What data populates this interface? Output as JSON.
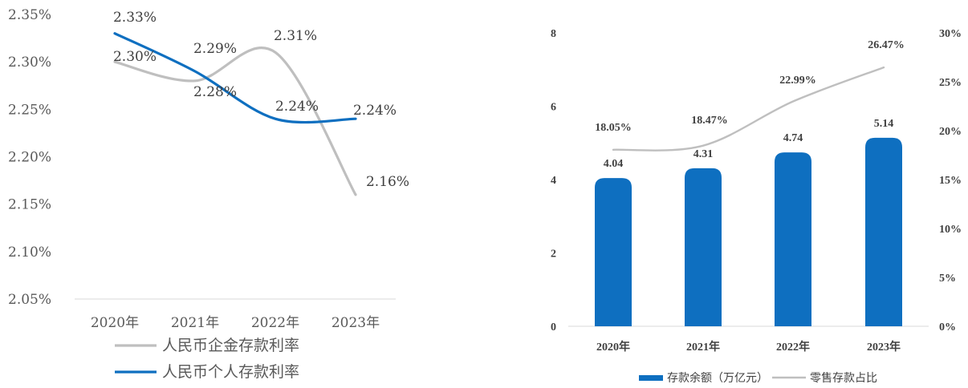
{
  "chart_data": [
    {
      "type": "line",
      "categories": [
        "2020年",
        "2021年",
        "2022年",
        "2023年"
      ],
      "ylim": [
        2.05,
        2.35
      ],
      "y_ticks": [
        "2.05%",
        "2.10%",
        "2.15%",
        "2.20%",
        "2.25%",
        "2.30%",
        "2.35%"
      ],
      "grid": false,
      "legend_position": "bottom",
      "series": [
        {
          "name": "人民币企金存款利率",
          "values": [
            2.3,
            2.28,
            2.31,
            2.16
          ],
          "labels": [
            "2.30%",
            "2.28%",
            "2.31%",
            "2.16%"
          ],
          "color": "#bfbfbf"
        },
        {
          "name": "人民币个人存款利率",
          "values": [
            2.33,
            2.29,
            2.24,
            2.24
          ],
          "labels": [
            "2.33%",
            "2.29%",
            "2.24%",
            "2.24%"
          ],
          "color": "#0e6fc0"
        }
      ]
    },
    {
      "type": "bar",
      "categories": [
        "2020年",
        "2021年",
        "2022年",
        "2023年"
      ],
      "ylim": [
        0,
        8
      ],
      "y_ticks": [
        "0",
        "2",
        "4",
        "6",
        "8"
      ],
      "y2lim": [
        0,
        30
      ],
      "y2_ticks": [
        "0%",
        "5%",
        "10%",
        "15%",
        "20%",
        "25%",
        "30%"
      ],
      "grid": false,
      "legend_position": "bottom",
      "series": [
        {
          "name": "存款余额（万亿元）",
          "type": "bar",
          "axis": "left",
          "values": [
            4.04,
            4.31,
            4.74,
            5.14
          ],
          "labels": [
            "4.04",
            "4.31",
            "4.74",
            "5.14"
          ],
          "color": "#0e6fc0"
        },
        {
          "name": "零售存款占比",
          "type": "line",
          "axis": "right",
          "values": [
            18.05,
            18.47,
            22.99,
            26.47
          ],
          "labels": [
            "18.05%",
            "18.47%",
            "22.99%",
            "26.47%"
          ],
          "color": "#bfbfbf"
        }
      ]
    }
  ]
}
